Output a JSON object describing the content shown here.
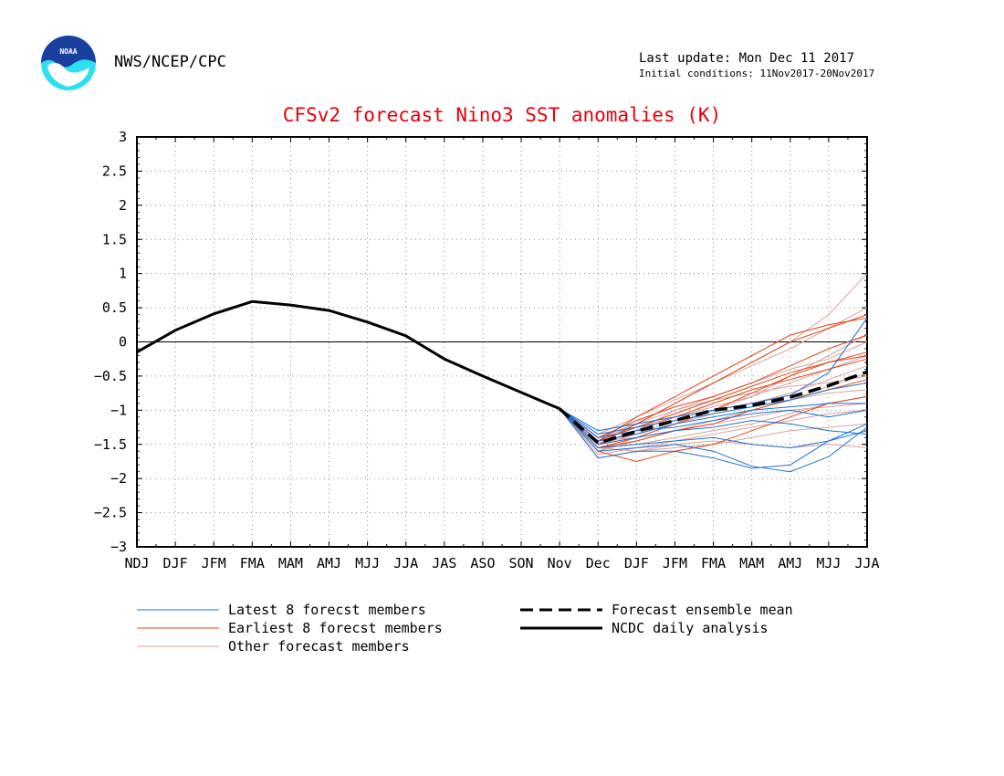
{
  "header": {
    "org": "NWS/NCEP/CPC",
    "last_update": "Last update: Mon Dec 11 2017",
    "initial_conditions": "Initial conditions: 11Nov2017-20Nov2017",
    "logo_text": "NOAA"
  },
  "colors": {
    "title": "#e8000b",
    "latest": "#1f6fd1",
    "earliest": "#e0451a",
    "other": "#d9a39a",
    "mean": "#000000",
    "analysis": "#000000",
    "logo_blue": "#1b3f9e",
    "logo_cyan": "#2de0f0"
  },
  "chart_data": {
    "type": "line",
    "title": "CFSv2 forecast Nino3 SST anomalies (K)",
    "categories": [
      "NDJ",
      "DJF",
      "JFM",
      "FMA",
      "MAM",
      "AMJ",
      "MJJ",
      "JJA",
      "JAS",
      "ASO",
      "SON",
      "Nov",
      "Dec",
      "DJF",
      "JFM",
      "FMA",
      "MAM",
      "AMJ",
      "MJJ",
      "JJA"
    ],
    "ylim": [
      -3,
      3
    ],
    "yticks": [
      "3",
      "2.5",
      "2",
      "1.5",
      "1",
      "0.5",
      "0",
      "−0.5",
      "−1",
      "−1.5",
      "−2",
      "−2.5",
      "−3"
    ],
    "ytick_values": [
      3,
      2.5,
      2,
      1.5,
      1,
      0.5,
      0,
      -0.5,
      -1,
      -1.5,
      -2,
      -2.5,
      -3
    ],
    "grid": true,
    "legend_position": "bottom",
    "analysis": {
      "name": "NCDC daily analysis",
      "values": [
        -0.15,
        0.17,
        0.41,
        0.59,
        0.54,
        0.46,
        0.29,
        0.09,
        -0.25,
        -0.5,
        -0.74,
        -0.98
      ]
    },
    "ensemble_mean": {
      "name": "Forecast ensemble mean",
      "start_index": 11,
      "values": [
        -0.98,
        -1.48,
        -1.31,
        -1.15,
        -1.0,
        -0.93,
        -0.81,
        -0.64,
        -0.44
      ]
    },
    "member_groups": [
      {
        "name": "Latest 8 forecst members",
        "color": "#1f6fd1",
        "start_index": 11,
        "members": [
          [
            -0.98,
            -1.6,
            -1.55,
            -1.5,
            -1.6,
            -1.82,
            -1.9,
            -1.68,
            -1.25
          ],
          [
            -0.98,
            -1.3,
            -1.2,
            -1.1,
            -1.0,
            -0.9,
            -0.78,
            -0.45,
            0.35
          ],
          [
            -0.98,
            -1.5,
            -1.4,
            -1.3,
            -1.25,
            -1.15,
            -1.2,
            -1.3,
            -1.35
          ],
          [
            -0.98,
            -1.45,
            -1.35,
            -1.2,
            -1.1,
            -1.0,
            -0.95,
            -0.9,
            -0.9
          ],
          [
            -0.98,
            -1.7,
            -1.6,
            -1.6,
            -1.7,
            -1.85,
            -1.8,
            -1.45,
            -1.2
          ],
          [
            -0.98,
            -1.4,
            -1.3,
            -1.25,
            -1.15,
            -1.05,
            -1.0,
            -1.1,
            -1.0
          ],
          [
            -0.98,
            -1.55,
            -1.5,
            -1.45,
            -1.4,
            -1.5,
            -1.55,
            -1.45,
            -1.3
          ],
          [
            -0.98,
            -1.35,
            -1.25,
            -1.15,
            -1.05,
            -0.95,
            -0.85,
            -0.7,
            -0.6
          ]
        ]
      },
      {
        "name": "Earliest 8 forecst members",
        "color": "#e0451a",
        "start_index": 11,
        "members": [
          [
            -0.98,
            -1.5,
            -1.2,
            -0.9,
            -0.6,
            -0.3,
            0.0,
            0.2,
            0.4
          ],
          [
            -0.98,
            -1.45,
            -1.1,
            -0.8,
            -0.5,
            -0.2,
            0.1,
            0.25,
            0.35
          ],
          [
            -0.98,
            -1.55,
            -1.4,
            -1.2,
            -1.0,
            -0.75,
            -0.5,
            -0.3,
            -0.15
          ],
          [
            -0.98,
            -1.4,
            -1.15,
            -0.95,
            -0.8,
            -0.6,
            -0.35,
            -0.1,
            0.1
          ],
          [
            -0.98,
            -1.6,
            -1.75,
            -1.6,
            -1.5,
            -1.3,
            -1.1,
            -0.9,
            -0.8
          ],
          [
            -0.98,
            -1.5,
            -1.3,
            -1.1,
            -0.9,
            -0.7,
            -0.55,
            -0.4,
            -0.25
          ],
          [
            -0.98,
            -1.45,
            -1.25,
            -1.05,
            -0.85,
            -0.65,
            -0.45,
            -0.3,
            -0.2
          ],
          [
            -0.98,
            -1.55,
            -1.45,
            -1.3,
            -1.2,
            -1.0,
            -0.85,
            -0.7,
            -0.55
          ]
        ]
      },
      {
        "name": "Other forecast members",
        "color": "#d9a39a",
        "start_index": 11,
        "members": [
          [
            -0.98,
            -1.6,
            -1.4,
            -1.2,
            -1.0,
            -0.8,
            -0.5,
            -0.2,
            0.1
          ],
          [
            -0.98,
            -1.45,
            -1.2,
            -0.9,
            -0.6,
            -0.3,
            0.0,
            0.4,
            1.0
          ],
          [
            -0.98,
            -1.5,
            -1.35,
            -1.2,
            -1.05,
            -0.95,
            -0.85,
            -0.75,
            -0.7
          ],
          [
            -0.98,
            -1.7,
            -1.6,
            -1.5,
            -1.45,
            -1.5,
            -1.55,
            -1.5,
            -1.55
          ],
          [
            -0.98,
            -1.4,
            -1.25,
            -1.1,
            -0.95,
            -0.8,
            -0.6,
            -0.4,
            -0.2
          ],
          [
            -0.98,
            -1.55,
            -1.5,
            -1.4,
            -1.3,
            -1.2,
            -1.05,
            -0.9,
            -0.8
          ],
          [
            -0.98,
            -1.35,
            -1.1,
            -0.85,
            -0.6,
            -0.35,
            -0.1,
            0.2,
            0.5
          ],
          [
            -0.98,
            -1.65,
            -1.55,
            -1.45,
            -1.35,
            -1.25,
            -1.15,
            -1.05,
            -1.0
          ],
          [
            -0.98,
            -1.5,
            -1.3,
            -1.0,
            -0.8,
            -0.6,
            -0.4,
            -0.25,
            0.0
          ],
          [
            -0.98,
            -1.45,
            -1.4,
            -1.3,
            -1.2,
            -1.1,
            -1.0,
            -0.95,
            -0.9
          ],
          [
            -0.98,
            -1.6,
            -1.45,
            -1.3,
            -1.15,
            -1.0,
            -0.85,
            -0.65,
            -0.45
          ],
          [
            -0.98,
            -1.5,
            -1.35,
            -1.15,
            -1.0,
            -0.9,
            -0.75,
            -0.55,
            -0.35
          ],
          [
            -0.98,
            -1.55,
            -1.6,
            -1.55,
            -1.5,
            -1.4,
            -1.3,
            -1.25,
            -1.2
          ],
          [
            -0.98,
            -1.4,
            -1.2,
            -1.0,
            -0.85,
            -0.75,
            -0.65,
            -0.6,
            -0.5
          ]
        ]
      }
    ],
    "legend": [
      {
        "label": "Latest 8 forecst members",
        "style": "latest"
      },
      {
        "label": "Earliest 8 forecst members",
        "style": "earliest"
      },
      {
        "label": "Other forecast members",
        "style": "other"
      },
      {
        "label": "Forecast ensemble mean",
        "style": "mean"
      },
      {
        "label": "NCDC daily analysis",
        "style": "analysis"
      }
    ]
  }
}
